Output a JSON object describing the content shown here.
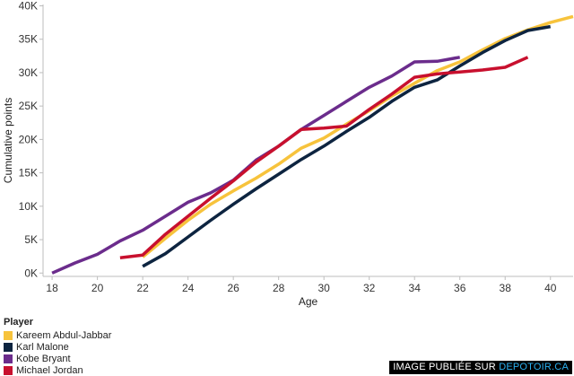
{
  "chart_data": {
    "type": "line",
    "xlabel": "Age",
    "ylabel": "Cumulative points",
    "xlim": [
      17.6,
      41
    ],
    "ylim": [
      -500,
      40200
    ],
    "x_ticks": [
      18,
      20,
      22,
      24,
      26,
      28,
      30,
      32,
      34,
      36,
      38,
      40
    ],
    "y_ticks": [
      0,
      5000,
      10000,
      15000,
      20000,
      25000,
      30000,
      35000,
      40000
    ],
    "y_tick_labels": [
      "0K",
      "5K",
      "10K",
      "15K",
      "20K",
      "25K",
      "30K",
      "35K",
      "40K"
    ],
    "grid": false,
    "legend_title": "Player",
    "legend_position": "bottom-left",
    "series": [
      {
        "name": "Kareem Abdul-Jabbar",
        "color": "#f7c33c",
        "x": [
          22,
          23,
          24,
          25,
          26,
          27,
          28,
          29,
          30,
          31,
          32,
          33,
          34,
          35,
          36,
          37,
          38,
          39,
          40,
          41
        ],
        "y": [
          2400,
          5200,
          7900,
          10300,
          12300,
          14200,
          16300,
          18700,
          20200,
          22300,
          24300,
          26500,
          28400,
          30300,
          31600,
          33400,
          35100,
          36400,
          37500,
          38400
        ]
      },
      {
        "name": "Karl Malone",
        "color": "#0d2440",
        "x": [
          22,
          23,
          24,
          25,
          26,
          27,
          28,
          29,
          30,
          31,
          32,
          33,
          34,
          35,
          36,
          37,
          38,
          39,
          40
        ],
        "y": [
          1000,
          2900,
          5400,
          7900,
          10300,
          12600,
          14800,
          17000,
          19000,
          21200,
          23300,
          25700,
          27800,
          28900,
          31000,
          33000,
          34800,
          36300,
          36900
        ]
      },
      {
        "name": "Kobe Bryant",
        "color": "#6b2c8c",
        "x": [
          18,
          19,
          20,
          21,
          22,
          23,
          24,
          25,
          26,
          27,
          28,
          29,
          30,
          31,
          32,
          33,
          34,
          35,
          36
        ],
        "y": [
          0,
          1500,
          2800,
          4800,
          6400,
          8500,
          10600,
          12000,
          13900,
          16900,
          19000,
          21500,
          23600,
          25700,
          27800,
          29500,
          31600,
          31700,
          32300
        ]
      },
      {
        "name": "Michael Jordan",
        "color": "#c8102e",
        "x": [
          21,
          22,
          23,
          24,
          25,
          26,
          27,
          28,
          29,
          30,
          31,
          32,
          33,
          34,
          35,
          36,
          37,
          38,
          39
        ],
        "y": [
          2300,
          2700,
          5800,
          8500,
          11200,
          13800,
          16600,
          19000,
          21500,
          21700,
          22000,
          24500,
          26800,
          29300,
          29800,
          30100,
          30400,
          30800,
          32300
        ]
      }
    ]
  },
  "watermark": {
    "prefix": "IMAGE PUBLIÉE SUR ",
    "site": "DEPOTOIR.CA"
  }
}
